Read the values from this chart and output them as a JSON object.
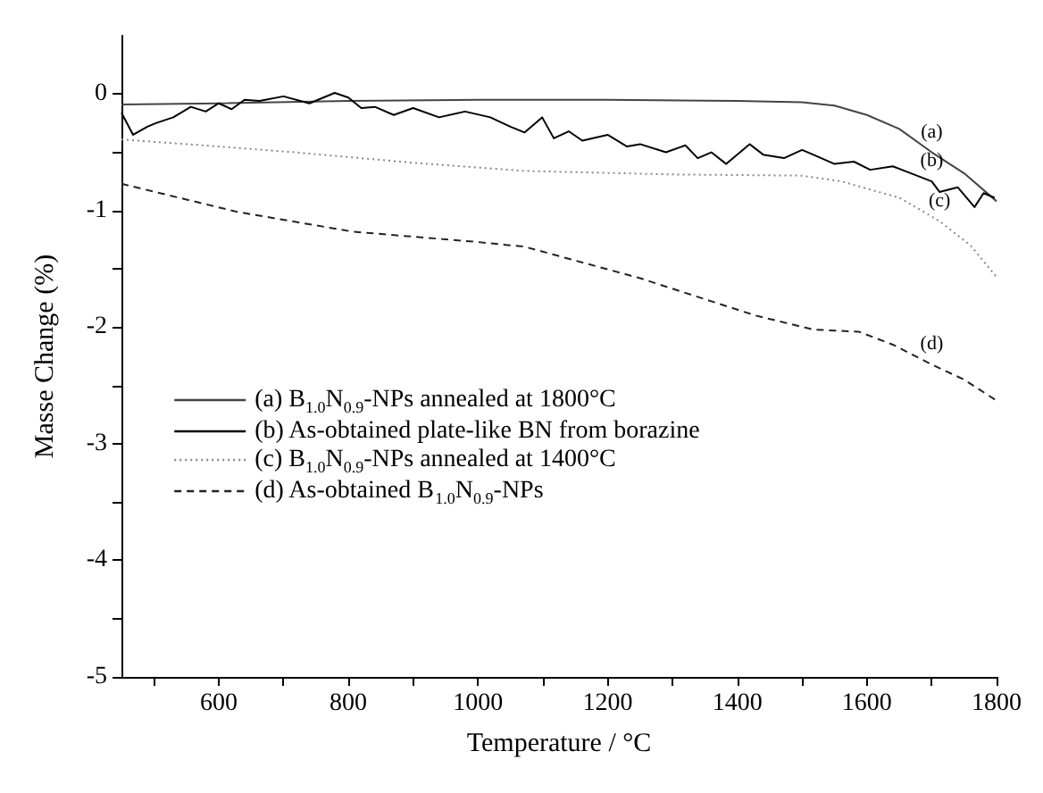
{
  "chart_data": {
    "type": "line",
    "xlabel": "Temperature / °C",
    "ylabel": "Masse Change (%)",
    "xlim": [
      450,
      1800
    ],
    "ylim": [
      -5,
      0.5
    ],
    "xticks": [
      {
        "value": 500,
        "label": null
      },
      600,
      {
        "value": 700,
        "label": null
      },
      800,
      {
        "value": 900,
        "label": null
      },
      1000,
      {
        "value": 1100,
        "label": null
      },
      1200,
      {
        "value": 1300,
        "label": null
      },
      1400,
      {
        "value": 1500,
        "label": null
      },
      1600,
      {
        "value": 1700,
        "label": null
      },
      1800
    ],
    "yticks": [
      -5,
      {
        "value": -4.5,
        "label": null
      },
      -4,
      {
        "value": -3.5,
        "label": null
      },
      -3,
      {
        "value": -2.5,
        "label": null
      },
      -2,
      {
        "value": -1.5,
        "label": null
      },
      -1,
      {
        "value": -0.5,
        "label": null
      },
      0
    ],
    "grid": false,
    "legend": "left",
    "marker": "none",
    "series": [
      {
        "name": "(a) B$_{1.0}$N$_{0.9}$-NPs annealed at 1800°C",
        "color": "#444444",
        "line_style": "solid",
        "x": [
          450,
          600,
          800,
          1000,
          1200,
          1400,
          1500,
          1550,
          1600,
          1650,
          1700,
          1750,
          1800
        ],
        "values": [
          -0.09,
          -0.08,
          -0.06,
          -0.05,
          -0.05,
          -0.06,
          -0.07,
          -0.1,
          -0.18,
          -0.3,
          -0.5,
          -0.68,
          -0.92
        ]
      },
      {
        "name": "(b) As-obtained plate-like BN from borazine",
        "color": "#000000",
        "line_style": "solid",
        "x": [
          450,
          468,
          490,
          503,
          530,
          557,
          580,
          600,
          620,
          640,
          663,
          700,
          740,
          779,
          800,
          820,
          841,
          870,
          900,
          940,
          980,
          1019,
          1050,
          1072,
          1099,
          1117,
          1140,
          1161,
          1200,
          1230,
          1250,
          1290,
          1320,
          1339,
          1360,
          1383,
          1419,
          1440,
          1472,
          1500,
          1517,
          1550,
          1580,
          1605,
          1640,
          1677,
          1700,
          1712,
          1740,
          1766,
          1780,
          1797
        ],
        "values": [
          -0.16,
          -0.35,
          -0.28,
          -0.25,
          -0.2,
          -0.11,
          -0.15,
          -0.08,
          -0.13,
          -0.05,
          -0.06,
          -0.02,
          -0.08,
          0.01,
          -0.03,
          -0.12,
          -0.11,
          -0.18,
          -0.12,
          -0.2,
          -0.15,
          -0.2,
          -0.28,
          -0.33,
          -0.2,
          -0.38,
          -0.32,
          -0.4,
          -0.35,
          -0.45,
          -0.43,
          -0.5,
          -0.44,
          -0.55,
          -0.5,
          -0.6,
          -0.43,
          -0.52,
          -0.55,
          -0.48,
          -0.52,
          -0.6,
          -0.58,
          -0.65,
          -0.62,
          -0.7,
          -0.75,
          -0.84,
          -0.8,
          -0.97,
          -0.85,
          -0.89
        ]
      },
      {
        "name": "(c) B$_{1.0}$N$_{0.9}$-NPs annealed at 1400°C",
        "color": "#888888",
        "line_style": "dotted",
        "x": [
          450,
          600,
          717,
          900,
          1072,
          1300,
          1499,
          1561,
          1650,
          1712,
          1760,
          1800
        ],
        "values": [
          -0.39,
          -0.45,
          -0.5,
          -0.59,
          -0.66,
          -0.69,
          -0.7,
          -0.75,
          -0.89,
          -1.09,
          -1.3,
          -1.57
        ]
      },
      {
        "name": "(d) As-obtained B$_{1.0}$N$_{0.9}$-NPs",
        "color": "#222222",
        "line_style": "dashed",
        "x": [
          450,
          628,
          806,
          1000,
          1072,
          1250,
          1428,
          1517,
          1588,
          1640,
          1700,
          1750,
          1800
        ],
        "values": [
          -0.77,
          -1.01,
          -1.18,
          -1.27,
          -1.31,
          -1.58,
          -1.9,
          -2.02,
          -2.04,
          -2.15,
          -2.32,
          -2.45,
          -2.63
        ]
      }
    ],
    "annotations": [
      "(a)",
      "(b)",
      "(c)",
      "(d)"
    ]
  }
}
